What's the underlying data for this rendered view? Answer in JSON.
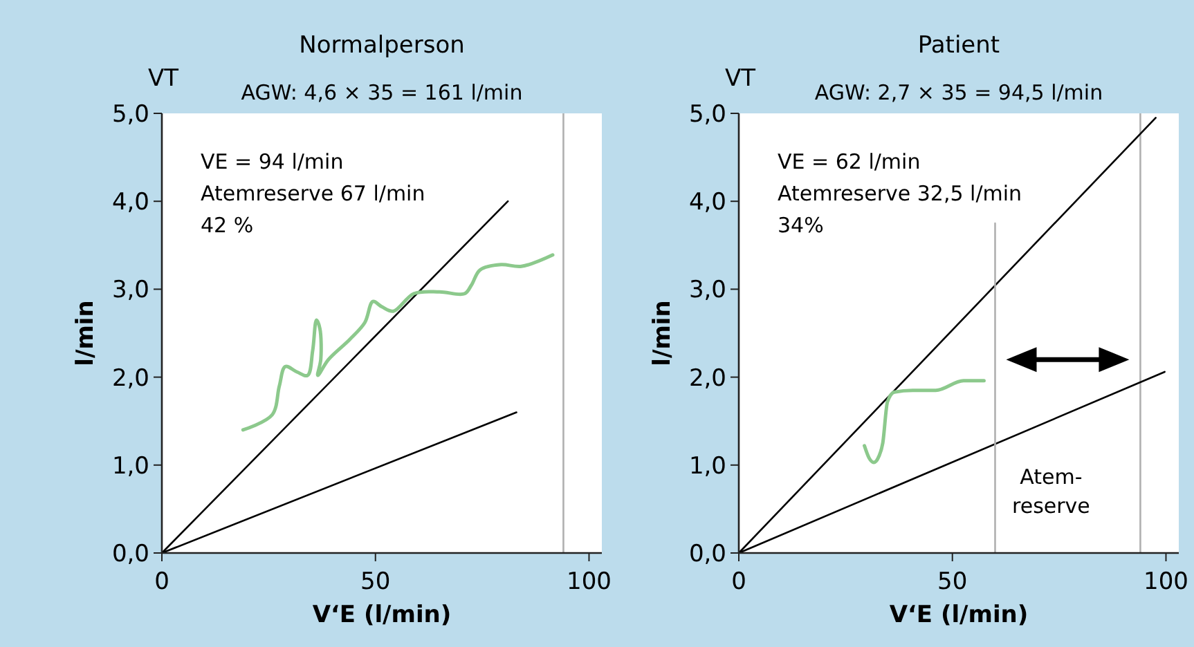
{
  "chart_data": [
    {
      "type": "line",
      "title": "Normalperson",
      "subtitle": "AGW: 4,6 × 35 = 161 l/min",
      "xlabel": "V‘E (l/min)",
      "ylabel": "l/min",
      "xlim": [
        0,
        103
      ],
      "ylim": [
        0,
        5
      ],
      "xticks": [
        0,
        50,
        100
      ],
      "yticks": [
        {
          "value": 0,
          "label": "0,0"
        },
        {
          "value": 1,
          "label": "1,0"
        },
        {
          "value": 2,
          "label": "2,0"
        },
        {
          "value": 3,
          "label": "3,0"
        },
        {
          "value": 4,
          "label": "4,0"
        },
        {
          "value": 5,
          "label": "5,0"
        }
      ],
      "grid": false,
      "series": [
        {
          "color": "#000000",
          "x": [
            0,
            81
          ],
          "values": [
            0,
            4.0
          ]
        },
        {
          "color": "#000000",
          "x": [
            0,
            83
          ],
          "values": [
            0,
            1.6
          ]
        },
        {
          "color": "#8cc98c",
          "x": [
            19,
            25.8,
            27.5,
            28.9,
            31.6,
            34.1,
            35.3,
            36.2,
            37,
            37.2,
            36.5,
            39,
            44,
            47.5,
            49.4,
            51.5,
            54.2,
            59,
            65,
            70.9,
            72.5,
            74.5,
            79.4,
            84.2,
            91.5
          ],
          "values": [
            1.4,
            1.57,
            1.9,
            2.12,
            2.06,
            2.02,
            2.3,
            2.65,
            2.55,
            2.2,
            2.02,
            2.2,
            2.43,
            2.62,
            2.86,
            2.8,
            2.75,
            2.95,
            2.97,
            2.95,
            3.05,
            3.22,
            3.28,
            3.26,
            3.39
          ]
        }
      ],
      "ref_lines": [
        {
          "axis": "x",
          "value": 94,
          "color": "#b0b0b0"
        }
      ],
      "annotations": [
        "VT",
        "VE = 94 l/min",
        "Atemreserve 67 l/min",
        "42 %"
      ]
    },
    {
      "type": "line",
      "title": "Patient",
      "subtitle": "AGW: 2,7 × 35 = 94,5 l/min",
      "xlabel": "V‘E (l/min)",
      "ylabel": "l/min",
      "xlim": [
        0,
        103
      ],
      "ylim": [
        0,
        5
      ],
      "xticks": [
        0,
        50,
        100
      ],
      "yticks": [
        {
          "value": 0,
          "label": "0,0"
        },
        {
          "value": 1,
          "label": "1,0"
        },
        {
          "value": 2,
          "label": "2,0"
        },
        {
          "value": 3,
          "label": "3,0"
        },
        {
          "value": 4,
          "label": "4,0"
        },
        {
          "value": 5,
          "label": "5,0"
        }
      ],
      "grid": false,
      "series": [
        {
          "color": "#000000",
          "x": [
            0,
            97.6
          ],
          "values": [
            0,
            4.95
          ]
        },
        {
          "color": "#000000",
          "x": [
            0,
            99.7
          ],
          "values": [
            0,
            2.06
          ]
        },
        {
          "color": "#8cc98c",
          "x": [
            29.4,
            30.5,
            31.6,
            32.8,
            33.7,
            34.8,
            36.4,
            40.7,
            46.1,
            52.6,
            57.4
          ],
          "values": [
            1.22,
            1.08,
            1.03,
            1.1,
            1.25,
            1.72,
            1.83,
            1.85,
            1.85,
            1.96,
            1.96
          ]
        },
        {
          "color": "#b0b0b0",
          "x": [
            60,
            60
          ],
          "values": [
            0,
            3.75
          ]
        }
      ],
      "ref_lines": [
        {
          "axis": "x",
          "value": 94,
          "color": "#b0b0b0"
        }
      ],
      "annotations": [
        "VT",
        "VE = 62 l/min",
        "Atemreserve 32,5 l/min",
        "34%",
        "Atem-\nreserve"
      ]
    }
  ]
}
